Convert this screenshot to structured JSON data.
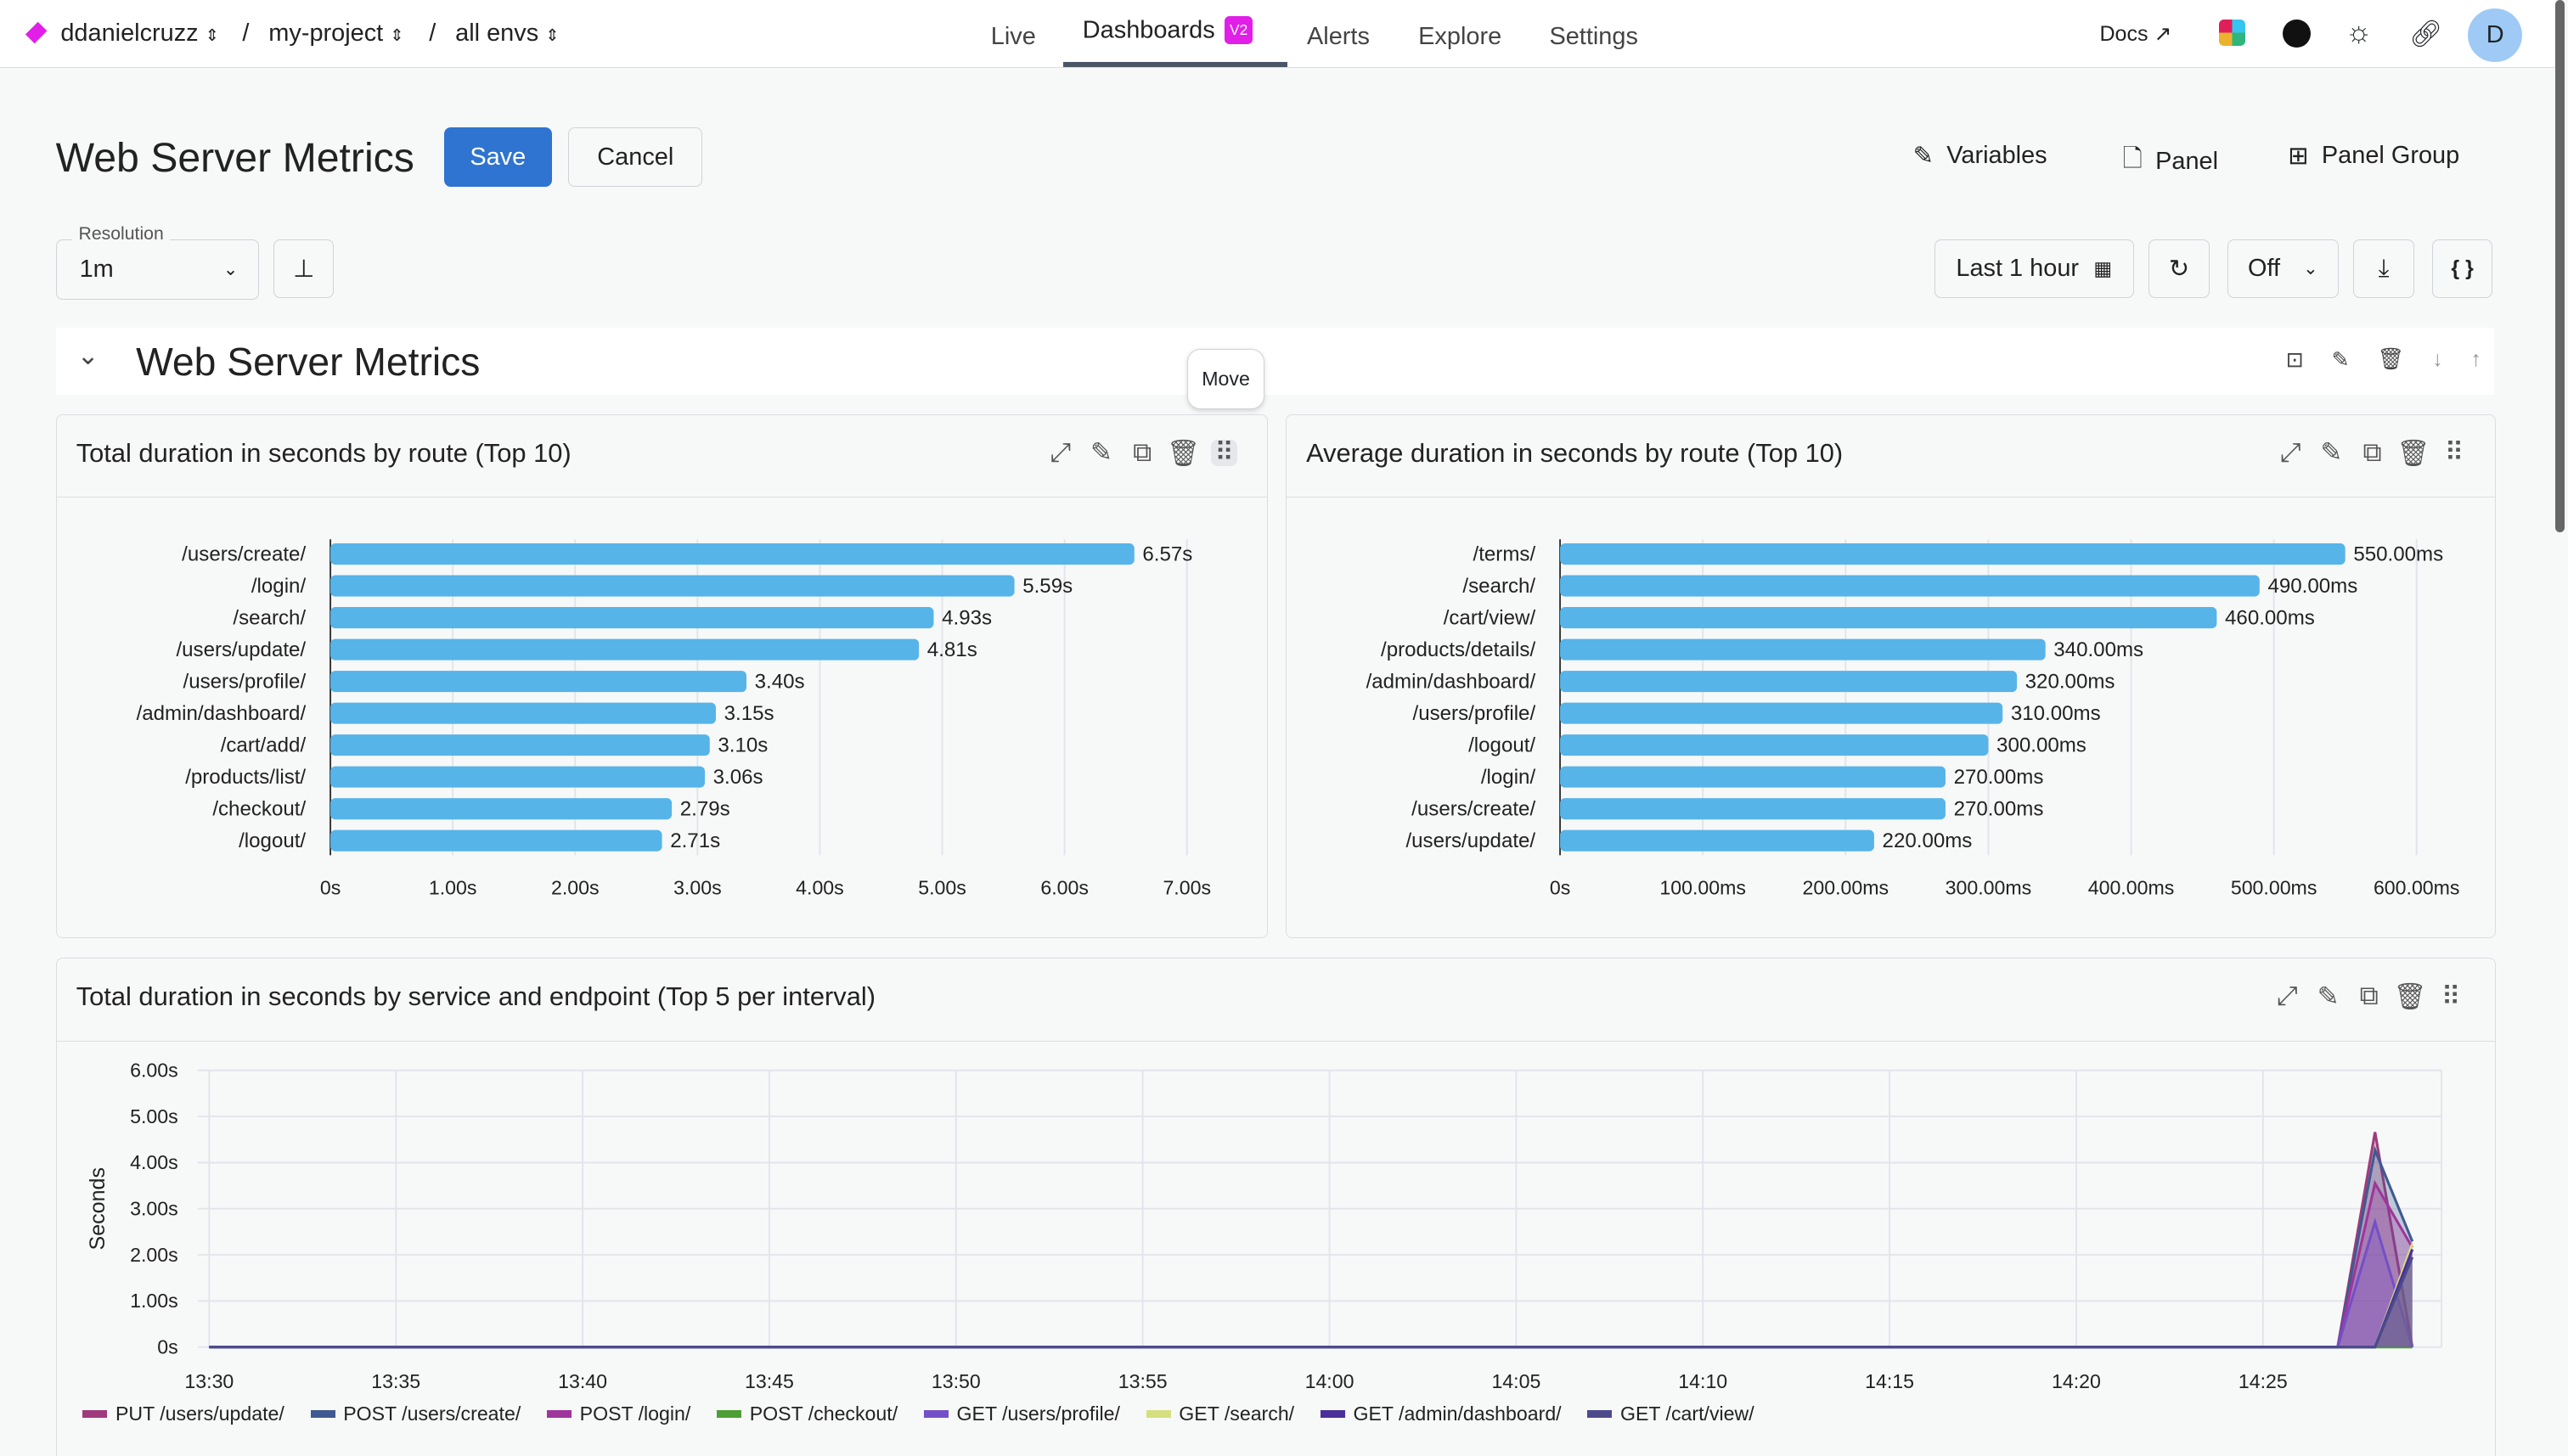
{
  "header": {
    "org": "ddanielcruzz",
    "project": "my-project",
    "env": "all envs",
    "separator": "/",
    "nav": [
      {
        "label": "Live"
      },
      {
        "label": "Dashboards",
        "badge": "V2",
        "active": true
      },
      {
        "label": "Alerts"
      },
      {
        "label": "Explore"
      },
      {
        "label": "Settings"
      }
    ],
    "docs": "Docs",
    "avatar": "D",
    "brand_color": "#e11fe8"
  },
  "toolbar": {
    "title": "Web Server Metrics",
    "save": "Save",
    "cancel": "Cancel",
    "variables": "Variables",
    "panel": "Panel",
    "panel_group": "Panel Group",
    "resolution_label": "Resolution",
    "resolution_value": "1m",
    "time_range": "Last 1 hour",
    "refresh_interval": "Off",
    "json": "{ }"
  },
  "group": {
    "title": "Web Server Metrics",
    "tooltip": "Move"
  },
  "chart_data": [
    {
      "type": "bar",
      "orientation": "horizontal",
      "title": "Total duration in seconds by route (Top 10)",
      "categories": [
        "/users/create/",
        "/login/",
        "/search/",
        "/users/update/",
        "/users/profile/",
        "/admin/dashboard/",
        "/cart/add/",
        "/products/list/",
        "/checkout/",
        "/logout/"
      ],
      "values": [
        6.57,
        5.59,
        4.93,
        4.81,
        3.4,
        3.15,
        3.1,
        3.06,
        2.79,
        2.71
      ],
      "value_labels": [
        "6.57s",
        "5.59s",
        "4.93s",
        "4.81s",
        "3.40s",
        "3.15s",
        "3.10s",
        "3.06s",
        "2.79s",
        "2.71s"
      ],
      "xlim": [
        0,
        7
      ],
      "ticks": [
        "0s",
        "1.00s",
        "2.00s",
        "3.00s",
        "4.00s",
        "5.00s",
        "6.00s",
        "7.00s"
      ],
      "color": "#56b4e9",
      "grid": true
    },
    {
      "type": "bar",
      "orientation": "horizontal",
      "title": "Average duration in seconds by route (Top 10)",
      "categories": [
        "/terms/",
        "/search/",
        "/cart/view/",
        "/products/details/",
        "/admin/dashboard/",
        "/users/profile/",
        "/logout/",
        "/login/",
        "/users/create/",
        "/users/update/"
      ],
      "values": [
        550,
        490,
        460,
        340,
        320,
        310,
        300,
        270,
        270,
        220
      ],
      "value_labels": [
        "550.00ms",
        "490.00ms",
        "460.00ms",
        "340.00ms",
        "320.00ms",
        "310.00ms",
        "300.00ms",
        "270.00ms",
        "270.00ms",
        "220.00ms"
      ],
      "xlim": [
        0,
        600
      ],
      "ticks": [
        "0s",
        "100.00ms",
        "200.00ms",
        "300.00ms",
        "400.00ms",
        "500.00ms",
        "600.00ms"
      ],
      "color": "#56b4e9",
      "grid": true
    },
    {
      "type": "area",
      "title": "Total duration in seconds by service and endpoint (Top 5 per interval)",
      "ylabel": "Seconds",
      "ylim": [
        0,
        6
      ],
      "yticks": [
        "0s",
        "1.00s",
        "2.00s",
        "3.00s",
        "4.00s",
        "5.00s",
        "6.00s"
      ],
      "xlim": [
        "13:30",
        "14:29"
      ],
      "xticks": [
        "13:30",
        "13:35",
        "13:40",
        "13:45",
        "13:50",
        "13:55",
        "14:00",
        "14:05",
        "14:10",
        "14:15",
        "14:20",
        "14:25"
      ],
      "grid": true,
      "legend": "bottom",
      "series": [
        {
          "name": "PUT /users/update/",
          "color": "#a03a7c",
          "points": [
            [
              "13:30",
              0
            ],
            [
              "14:27",
              0
            ],
            [
              "14:28",
              4.66
            ],
            [
              "14:29",
              0
            ]
          ]
        },
        {
          "name": "POST /users/create/",
          "color": "#3f5a90",
          "points": [
            [
              "13:30",
              0
            ],
            [
              "14:27",
              0
            ],
            [
              "14:28",
              4.27
            ],
            [
              "14:29",
              2.29
            ]
          ]
        },
        {
          "name": "POST /login/",
          "color": "#a0359c",
          "points": [
            [
              "13:30",
              0
            ],
            [
              "14:27",
              0
            ],
            [
              "14:28",
              3.55
            ],
            [
              "14:29",
              2.16
            ]
          ]
        },
        {
          "name": "POST /checkout/",
          "color": "#4f9e36",
          "points": [
            [
              "13:30",
              0
            ],
            [
              "14:29",
              0
            ]
          ]
        },
        {
          "name": "GET /users/profile/",
          "color": "#7350c8",
          "points": [
            [
              "13:30",
              0
            ],
            [
              "14:27",
              0
            ],
            [
              "14:28",
              2.71
            ],
            [
              "14:29",
              0
            ]
          ]
        },
        {
          "name": "GET /search/",
          "color": "#d6df7e",
          "points": [
            [
              "13:30",
              0
            ],
            [
              "14:28",
              0
            ],
            [
              "14:29",
              2.24
            ]
          ]
        },
        {
          "name": "GET /admin/dashboard/",
          "color": "#4a2f9a",
          "points": [
            [
              "13:30",
              0
            ],
            [
              "14:28",
              0
            ],
            [
              "14:29",
              2.12
            ]
          ]
        },
        {
          "name": "GET /cart/view/",
          "color": "#4b4b8c",
          "points": [
            [
              "13:30",
              0
            ],
            [
              "14:28",
              0
            ],
            [
              "14:29",
              1.95
            ]
          ]
        }
      ]
    }
  ]
}
